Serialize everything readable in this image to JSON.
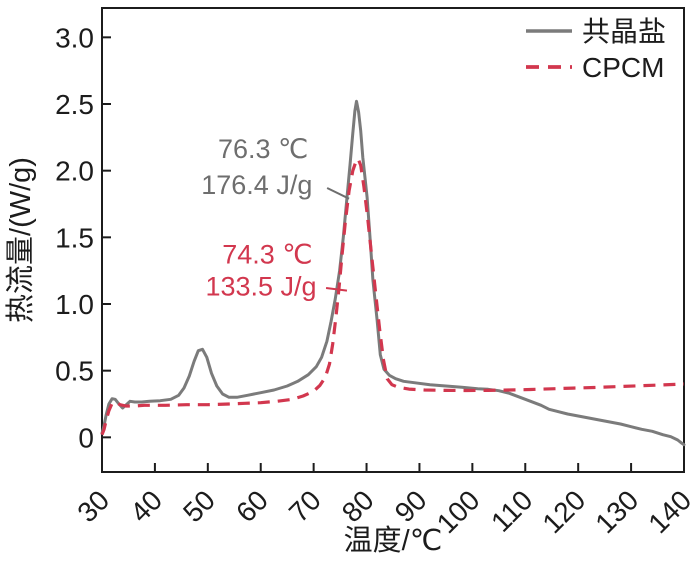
{
  "figure": {
    "background": "#ffffff",
    "border_color": "#1c1c1c",
    "text_color": "#1c1c1c"
  },
  "chart_data": {
    "type": "line",
    "title": "",
    "xlabel": "温度/℃",
    "ylabel": "热流量/(W/g)",
    "xlim": [
      30,
      140
    ],
    "ylim": [
      -0.26,
      3.22
    ],
    "xticks": [
      30,
      40,
      50,
      60,
      70,
      80,
      90,
      100,
      110,
      120,
      130,
      140
    ],
    "yticks": [
      0,
      0.5,
      1,
      1.5,
      2,
      2.5,
      3
    ],
    "ytick_labels": [
      "0",
      "0.5",
      "1.0",
      "1.5",
      "2.0",
      "2.5",
      "3.0"
    ],
    "grid": false,
    "legend_position": "top-right",
    "series": [
      {
        "name": "共晶盐",
        "color": "#7b7b7b",
        "line_style": "solid",
        "line_width": 3,
        "points": [
          [
            30,
            0.03
          ],
          [
            30.4,
            0.09
          ],
          [
            30.8,
            0.17
          ],
          [
            31.3,
            0.25
          ],
          [
            31.9,
            0.29
          ],
          [
            32.5,
            0.285
          ],
          [
            33.2,
            0.25
          ],
          [
            33.9,
            0.22
          ],
          [
            34.6,
            0.245
          ],
          [
            35.3,
            0.27
          ],
          [
            36.2,
            0.265
          ],
          [
            37.5,
            0.265
          ],
          [
            39,
            0.27
          ],
          [
            41,
            0.275
          ],
          [
            43,
            0.285
          ],
          [
            44.5,
            0.315
          ],
          [
            45.5,
            0.37
          ],
          [
            46.5,
            0.46
          ],
          [
            47.4,
            0.57
          ],
          [
            48.2,
            0.65
          ],
          [
            49,
            0.66
          ],
          [
            49.8,
            0.6
          ],
          [
            50.7,
            0.48
          ],
          [
            51.7,
            0.385
          ],
          [
            52.8,
            0.325
          ],
          [
            54,
            0.3
          ],
          [
            55.5,
            0.3
          ],
          [
            57.5,
            0.315
          ],
          [
            60,
            0.335
          ],
          [
            62.5,
            0.355
          ],
          [
            65,
            0.385
          ],
          [
            67,
            0.42
          ],
          [
            69,
            0.47
          ],
          [
            70.5,
            0.53
          ],
          [
            71.5,
            0.6
          ],
          [
            72.5,
            0.72
          ],
          [
            73.3,
            0.87
          ],
          [
            74.1,
            1.04
          ],
          [
            74.9,
            1.25
          ],
          [
            75.6,
            1.5
          ],
          [
            76.3,
            1.8
          ],
          [
            76.9,
            2.05
          ],
          [
            77.4,
            2.28
          ],
          [
            77.8,
            2.45
          ],
          [
            78.1,
            2.52
          ],
          [
            78.5,
            2.44
          ],
          [
            78.9,
            2.3
          ],
          [
            79.3,
            2.1
          ],
          [
            80.1,
            1.8
          ],
          [
            80.7,
            1.48
          ],
          [
            81.2,
            1.18
          ],
          [
            82,
            0.88
          ],
          [
            82.6,
            0.62
          ],
          [
            83.3,
            0.51
          ],
          [
            84.3,
            0.465
          ],
          [
            85.5,
            0.44
          ],
          [
            87,
            0.42
          ],
          [
            89,
            0.41
          ],
          [
            92,
            0.395
          ],
          [
            95,
            0.385
          ],
          [
            98,
            0.375
          ],
          [
            101,
            0.365
          ],
          [
            103,
            0.36
          ],
          [
            105,
            0.35
          ],
          [
            107,
            0.33
          ],
          [
            109,
            0.3
          ],
          [
            111,
            0.27
          ],
          [
            113,
            0.24
          ],
          [
            114.5,
            0.21
          ],
          [
            116,
            0.195
          ],
          [
            118,
            0.175
          ],
          [
            120,
            0.16
          ],
          [
            122,
            0.145
          ],
          [
            124,
            0.13
          ],
          [
            126,
            0.115
          ],
          [
            128,
            0.1
          ],
          [
            130,
            0.08
          ],
          [
            132,
            0.06
          ],
          [
            134,
            0.045
          ],
          [
            136,
            0.02
          ],
          [
            137.5,
            0.005
          ],
          [
            138.8,
            -0.02
          ],
          [
            139.6,
            -0.045
          ],
          [
            140,
            -0.055
          ]
        ]
      },
      {
        "name": "CPCM",
        "color": "#d2374e",
        "line_style": "dashed",
        "line_width": 3.2,
        "points": [
          [
            30,
            0.02
          ],
          [
            30.4,
            0.06
          ],
          [
            30.8,
            0.13
          ],
          [
            31.3,
            0.2
          ],
          [
            31.9,
            0.255
          ],
          [
            32.6,
            0.265
          ],
          [
            33.4,
            0.245
          ],
          [
            34.5,
            0.235
          ],
          [
            36,
            0.235
          ],
          [
            38,
            0.24
          ],
          [
            42,
            0.24
          ],
          [
            46,
            0.245
          ],
          [
            50,
            0.245
          ],
          [
            54,
            0.25
          ],
          [
            57,
            0.255
          ],
          [
            60,
            0.26
          ],
          [
            63,
            0.27
          ],
          [
            66,
            0.285
          ],
          [
            68,
            0.31
          ],
          [
            70,
            0.345
          ],
          [
            71.2,
            0.39
          ],
          [
            72.2,
            0.45
          ],
          [
            73,
            0.55
          ],
          [
            73.6,
            0.7
          ],
          [
            74.2,
            0.9
          ],
          [
            74.8,
            1.12
          ],
          [
            75.4,
            1.38
          ],
          [
            76,
            1.62
          ],
          [
            76.7,
            1.85
          ],
          [
            77.4,
            2.0
          ],
          [
            78,
            2.07
          ],
          [
            78.4,
            2.09
          ],
          [
            78.9,
            2.04
          ],
          [
            79.5,
            1.88
          ],
          [
            80.2,
            1.65
          ],
          [
            81,
            1.35
          ],
          [
            81.8,
            1.05
          ],
          [
            82.5,
            0.8
          ],
          [
            83.2,
            0.58
          ],
          [
            83.9,
            0.44
          ],
          [
            84.8,
            0.395
          ],
          [
            86,
            0.375
          ],
          [
            88,
            0.362
          ],
          [
            91,
            0.355
          ],
          [
            95,
            0.352
          ],
          [
            99,
            0.351
          ],
          [
            103,
            0.352
          ],
          [
            107,
            0.355
          ],
          [
            111,
            0.359
          ],
          [
            115,
            0.364
          ],
          [
            119,
            0.369
          ],
          [
            123,
            0.374
          ],
          [
            127,
            0.38
          ],
          [
            131,
            0.386
          ],
          [
            135,
            0.392
          ],
          [
            140,
            0.4
          ]
        ]
      }
    ],
    "annotations": [
      {
        "id": "eutectic-salt-peak",
        "lines": [
          "76.3 ℃",
          "176.4 J/g"
        ],
        "color": "#6e6e6e",
        "anchor_temp": 69.0,
        "line_values": [
          2.17,
          1.9
        ],
        "leader": [
          [
            72.55,
            1.87
          ],
          [
            76.7,
            1.79
          ]
        ]
      },
      {
        "id": "cpcm-peak",
        "lines": [
          "74.3 ℃",
          "133.5 J/g"
        ],
        "color": "#d2374e",
        "anchor_temp": 69.8,
        "line_values": [
          1.38,
          1.14
        ],
        "leader": [
          [
            72.35,
            1.12
          ],
          [
            76.3,
            1.1
          ]
        ]
      }
    ]
  }
}
